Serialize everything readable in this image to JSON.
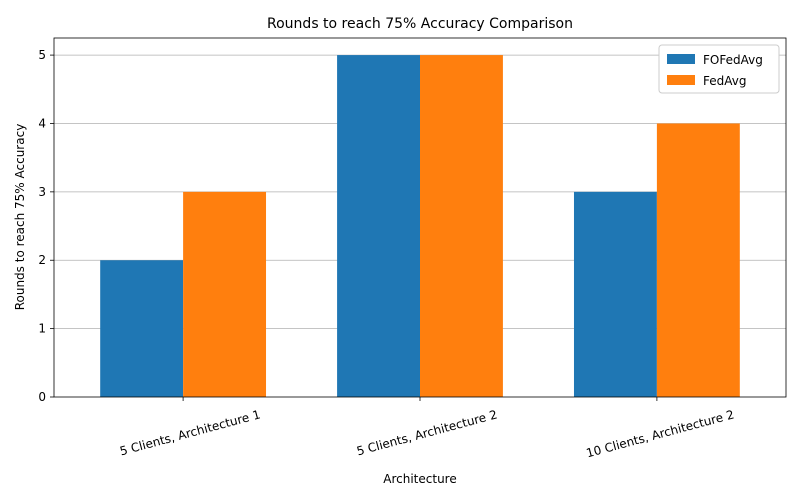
{
  "chart_data": {
    "type": "bar",
    "title": "Rounds to reach 75% Accuracy Comparison",
    "xlabel": "Architecture",
    "ylabel": "Rounds to reach 75% Accuracy",
    "categories": [
      "5 Clients, Architecture 1",
      "5 Clients, Architecture 2",
      "10 Clients, Architecture 2"
    ],
    "series": [
      {
        "name": "FOFedAvg",
        "values": [
          2,
          5,
          3
        ],
        "color": "#1f77b4"
      },
      {
        "name": "FedAvg",
        "values": [
          3,
          5,
          4
        ],
        "color": "#ff7f0e"
      }
    ],
    "ylim": [
      0,
      5.25
    ],
    "yticks": [
      0,
      1,
      2,
      3,
      4,
      5
    ],
    "grid": "y",
    "legend_position": "top-right"
  }
}
